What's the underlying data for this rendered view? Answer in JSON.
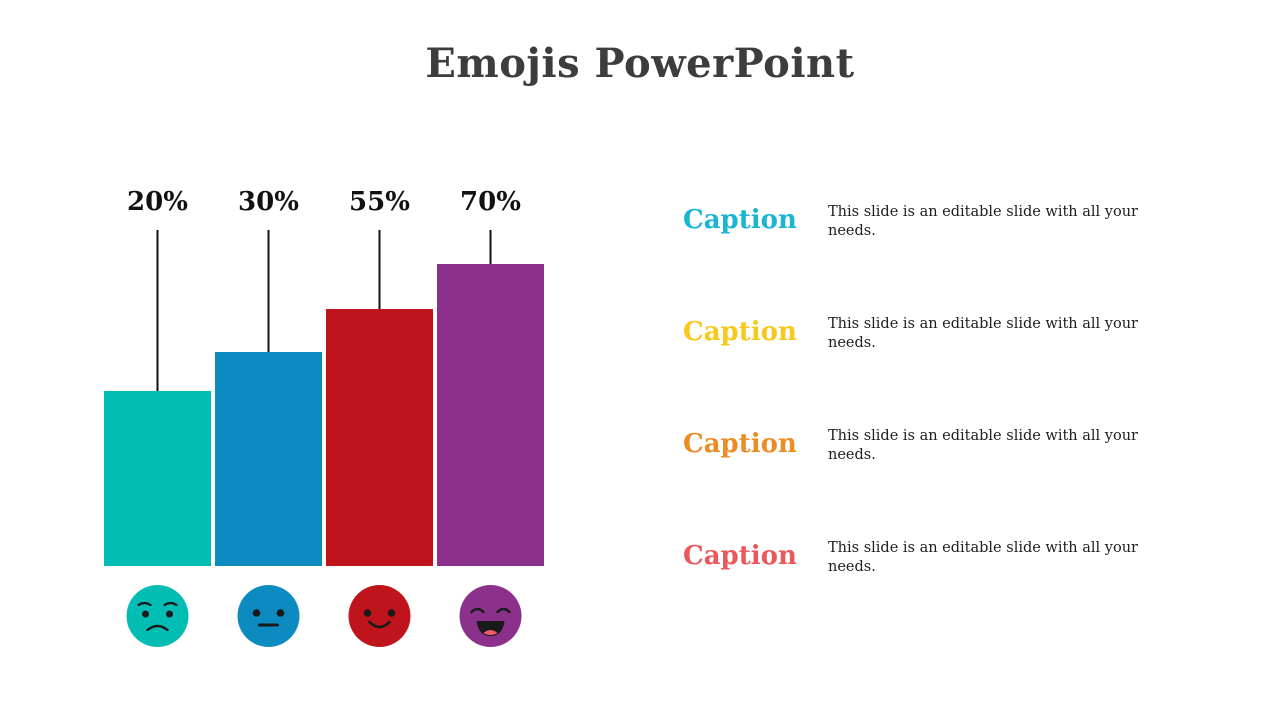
{
  "title": "Emojis PowerPoint",
  "chart_data": {
    "type": "bar",
    "categories": [
      "",
      "",
      "",
      ""
    ],
    "values": [
      20,
      30,
      55,
      70
    ],
    "labels": [
      "20%",
      "30%",
      "55%",
      "70%"
    ],
    "colors": [
      "#02bdb3",
      "#0b8bbf",
      "#bf141b",
      "#8b318b"
    ],
    "emojis": [
      "worried-face",
      "neutral-face",
      "smiling-face",
      "laughing-face"
    ],
    "title": "",
    "xlabel": "",
    "ylabel": ""
  },
  "captions": [
    {
      "title": "Caption",
      "text": "This slide is an editable slide with all your needs.",
      "color": "#19b5d3"
    },
    {
      "title": "Caption",
      "text": "This slide is an editable slide with all your needs.",
      "color": "#f8c81c"
    },
    {
      "title": "Caption",
      "text": "This slide is an editable slide with all your needs.",
      "color": "#ec8c25"
    },
    {
      "title": "Caption",
      "text": "This slide is an editable slide with all your needs.",
      "color": "#e9595c"
    }
  ]
}
